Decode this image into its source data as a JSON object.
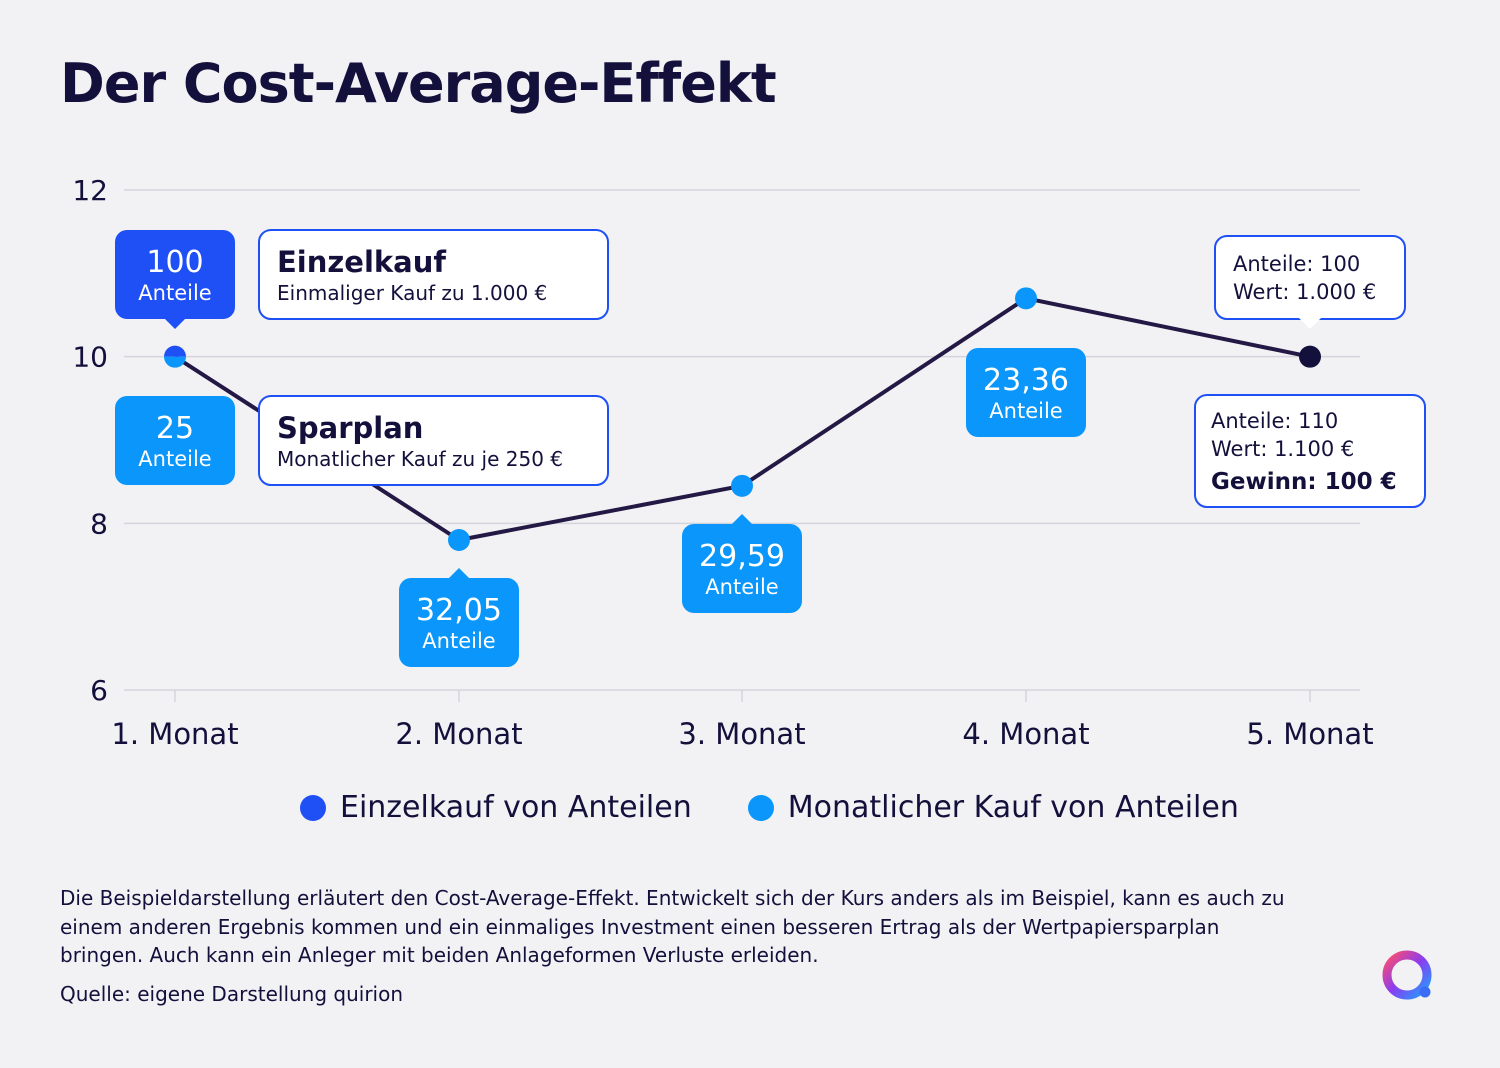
{
  "title": "Der Cost-Average-Effekt",
  "colors": {
    "line": "#241845",
    "einzelkauf": "#1f50f5",
    "monatlich": "#0a96fa",
    "end_point": "#14103c",
    "grid": "#d4d4dc",
    "box_border": "#1f50f5",
    "text": "#14103c"
  },
  "chart_data": {
    "type": "line",
    "categories": [
      "1. Monat",
      "2. Monat",
      "3. Monat",
      "4. Monat",
      "5. Monat"
    ],
    "series": [
      {
        "values": [
          10,
          7.8,
          8.45,
          10.7,
          10
        ]
      }
    ],
    "ylim": [
      6,
      12
    ],
    "yticks": [
      6,
      8,
      10,
      12
    ],
    "ytick_labels": [
      "6",
      "8",
      "10",
      "12"
    ],
    "grid": true,
    "share_callouts": [
      {
        "x": "1. Monat",
        "main": "100",
        "sub": "Anteile",
        "series": "einzelkauf",
        "position": "above"
      },
      {
        "x": "1. Monat",
        "main": "25",
        "sub": "Anteile",
        "series": "monatlich",
        "position": "below"
      },
      {
        "x": "2. Monat",
        "main": "32,05",
        "sub": "Anteile",
        "series": "monatlich",
        "position": "below"
      },
      {
        "x": "3. Monat",
        "main": "29,59",
        "sub": "Anteile",
        "series": "monatlich",
        "position": "below"
      },
      {
        "x": "4. Monat",
        "main": "23,36",
        "sub": "Anteile",
        "series": "monatlich",
        "position": "below"
      }
    ],
    "info_boxes": [
      {
        "title": "Einzelkauf",
        "text": "Einmaliger Kauf zu 1.000 €"
      },
      {
        "title": "Sparplan",
        "text": "Monatlicher Kauf zu je 250 €"
      }
    ],
    "result_boxes": [
      {
        "lines": [
          "Anteile: 100",
          "Wert: 1.000 €"
        ],
        "bold_line": ""
      },
      {
        "lines": [
          "Anteile: 110",
          "Wert: 1.100 €"
        ],
        "bold_line": "Gewinn: 100 €"
      }
    ]
  },
  "legend": [
    {
      "label": "Einzelkauf von Anteilen",
      "color": "#1f50f5"
    },
    {
      "label": "Monatlicher Kauf von Anteilen",
      "color": "#0a96fa"
    }
  ],
  "note": "Die Beispieldarstellung erläutert den Cost-Average-Effekt. Entwickelt sich der Kurs anders als im Beispiel, kann es auch zu einem anderen Ergebnis kommen und ein einmaliges Investment einen besseren Ertrag als der Wertpapiersparplan bringen. Auch kann ein Anleger mit beiden Anlageformen Verluste erleiden.",
  "source": "Quelle: eigene Darstellung quirion",
  "logo_icon": "quirion-logo-icon"
}
